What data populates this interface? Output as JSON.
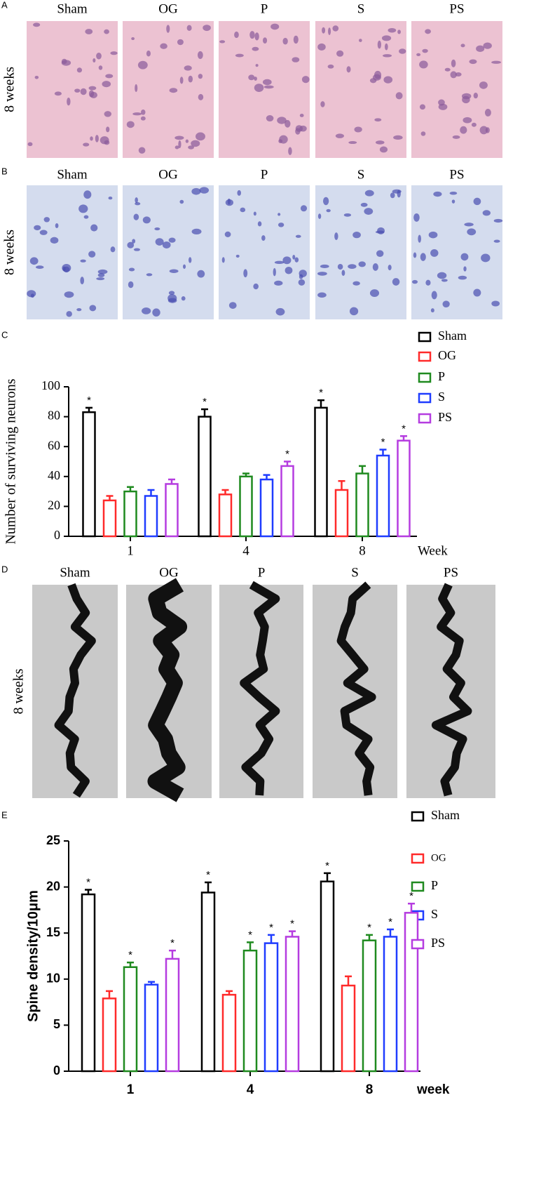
{
  "image_panels": [
    {
      "letter": "A",
      "row_label": "8 weeks",
      "columns": [
        "Sham",
        "OG",
        "P",
        "S",
        "PS"
      ]
    },
    {
      "letter": "B",
      "row_label": "8 weeks",
      "columns": [
        "Sham",
        "OG",
        "P",
        "S",
        "PS"
      ]
    },
    {
      "letter": "D",
      "row_label": "8 weeks",
      "columns": [
        "Sham",
        "OG",
        "P",
        "S",
        "PS"
      ]
    }
  ],
  "chart_data": [
    {
      "type": "bar",
      "panel_label": "C",
      "y_label": "Number of surviving neurons",
      "x_label": "Week",
      "categories": [
        "1",
        "4",
        "8"
      ],
      "series": [
        {
          "name": "Sham",
          "color": "#000000",
          "values": [
            83,
            80,
            86
          ],
          "errors": [
            3,
            5,
            5
          ],
          "annotations": [
            "*",
            "*",
            "*"
          ]
        },
        {
          "name": "OG",
          "color": "#ff2a2a",
          "values": [
            24,
            28,
            31
          ],
          "errors": [
            3,
            3,
            6
          ],
          "annotations": [
            null,
            null,
            null
          ]
        },
        {
          "name": "P",
          "color": "#1f8a1f",
          "values": [
            30,
            40,
            42
          ],
          "errors": [
            3,
            2,
            5
          ],
          "annotations": [
            null,
            null,
            null
          ]
        },
        {
          "name": "S",
          "color": "#1f3cff",
          "values": [
            27,
            38,
            54
          ],
          "errors": [
            4,
            3,
            4
          ],
          "annotations": [
            null,
            null,
            "*"
          ]
        },
        {
          "name": "PS",
          "color": "#b53ce0",
          "values": [
            35,
            47,
            64
          ],
          "errors": [
            3,
            3,
            3
          ],
          "annotations": [
            null,
            "*",
            "*"
          ]
        }
      ],
      "ylim": [
        0,
        100
      ],
      "yticks": [
        0,
        20,
        40,
        60,
        80,
        100
      ]
    },
    {
      "type": "bar",
      "panel_label": "E",
      "y_label": "Spine density/10μm",
      "x_label": "week",
      "categories": [
        "1",
        "4",
        "8"
      ],
      "series": [
        {
          "name": "Sham",
          "color": "#000000",
          "values": [
            19.2,
            19.4,
            20.6
          ],
          "errors": [
            0.5,
            1.1,
            0.9
          ],
          "annotations": [
            "*",
            "*",
            "*"
          ]
        },
        {
          "name": "OG",
          "color": "#ff2a2a",
          "values": [
            7.9,
            8.3,
            9.3
          ],
          "errors": [
            0.8,
            0.4,
            1.0
          ],
          "annotations": [
            null,
            null,
            null
          ]
        },
        {
          "name": "P",
          "color": "#1f8a1f",
          "values": [
            11.3,
            13.1,
            14.2
          ],
          "errors": [
            0.5,
            0.9,
            0.6
          ],
          "annotations": [
            "*",
            "*",
            "*"
          ]
        },
        {
          "name": "S",
          "color": "#1f3cff",
          "values": [
            9.4,
            13.9,
            14.6
          ],
          "errors": [
            0.3,
            0.9,
            0.8
          ],
          "annotations": [
            null,
            "*",
            "*"
          ]
        },
        {
          "name": "PS",
          "color": "#b53ce0",
          "values": [
            12.2,
            14.6,
            17.2
          ],
          "errors": [
            0.9,
            0.6,
            1.0
          ],
          "annotations": [
            "*",
            "*",
            "*"
          ]
        }
      ],
      "ylim": [
        0,
        25
      ],
      "yticks": [
        0,
        5,
        10,
        15,
        20,
        25
      ]
    }
  ]
}
